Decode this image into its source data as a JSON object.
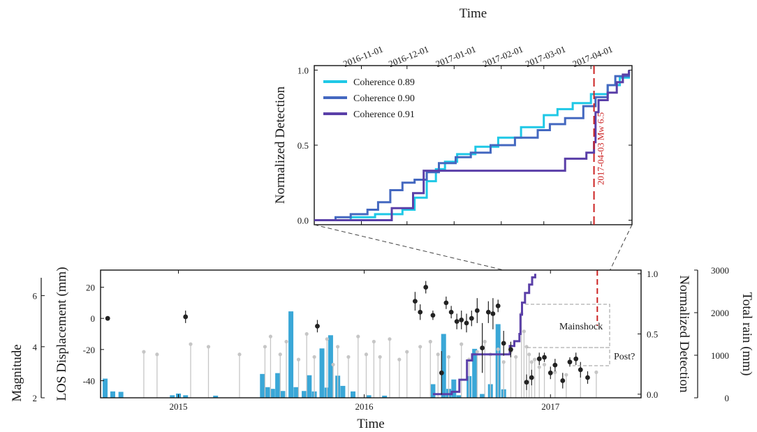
{
  "chart_data": [
    {
      "type": "line",
      "x_label_top": "Time",
      "ylabel": "Normalized Detection",
      "x_tick_labels": [
        "2016-11-01",
        "2016-12-01",
        "2017-01-01",
        "2017-02-01",
        "2017-03-01",
        "2017-04-01"
      ],
      "y_ticks": [
        "0.0",
        "0.5",
        "1.0"
      ],
      "xlim": [
        "2016-10-01",
        "2017-04-28"
      ],
      "ylim": [
        -0.03,
        1.03
      ],
      "event": {
        "date": "2017-04-03",
        "label": "2017-04-03 Mw 6.5",
        "color": "#cc2222"
      },
      "legend": "top-left",
      "series": [
        {
          "name": "Coherence 0.89",
          "color": "#1fc8e6",
          "step": true,
          "points": [
            [
              "2016-10-01",
              0.0
            ],
            [
              "2016-10-15",
              0.0
            ],
            [
              "2016-10-25",
              0.02
            ],
            [
              "2016-11-10",
              0.04
            ],
            [
              "2016-11-28",
              0.07
            ],
            [
              "2016-12-06",
              0.15
            ],
            [
              "2016-12-14",
              0.26
            ],
            [
              "2016-12-20",
              0.34
            ],
            [
              "2016-12-26",
              0.39
            ],
            [
              "2017-01-03",
              0.44
            ],
            [
              "2017-01-15",
              0.49
            ],
            [
              "2017-01-30",
              0.55
            ],
            [
              "2017-02-14",
              0.62
            ],
            [
              "2017-03-01",
              0.7
            ],
            [
              "2017-03-10",
              0.74
            ],
            [
              "2017-03-20",
              0.78
            ],
            [
              "2017-04-01",
              0.84
            ],
            [
              "2017-04-12",
              0.9
            ],
            [
              "2017-04-20",
              0.95
            ],
            [
              "2017-04-26",
              1.0
            ]
          ]
        },
        {
          "name": "Coherence 0.90",
          "color": "#4468c0",
          "step": true,
          "points": [
            [
              "2016-10-01",
              0.0
            ],
            [
              "2016-10-13",
              0.0
            ],
            [
              "2016-10-15",
              0.02
            ],
            [
              "2016-10-25",
              0.04
            ],
            [
              "2016-11-05",
              0.07
            ],
            [
              "2016-11-12",
              0.12
            ],
            [
              "2016-11-20",
              0.2
            ],
            [
              "2016-11-28",
              0.25
            ],
            [
              "2016-12-06",
              0.27
            ],
            [
              "2016-12-14",
              0.32
            ],
            [
              "2016-12-22",
              0.38
            ],
            [
              "2017-01-02",
              0.42
            ],
            [
              "2017-01-12",
              0.45
            ],
            [
              "2017-01-25",
              0.5
            ],
            [
              "2017-02-10",
              0.55
            ],
            [
              "2017-02-25",
              0.6
            ],
            [
              "2017-03-05",
              0.64
            ],
            [
              "2017-03-15",
              0.68
            ],
            [
              "2017-03-27",
              0.76
            ],
            [
              "2017-04-04",
              0.82
            ],
            [
              "2017-04-12",
              0.9
            ],
            [
              "2017-04-17",
              0.96
            ],
            [
              "2017-04-26",
              1.0
            ]
          ]
        },
        {
          "name": "Coherence 0.91",
          "color": "#5a3fa8",
          "step": true,
          "points": [
            [
              "2016-10-01",
              0.0
            ],
            [
              "2016-11-20",
              0.0
            ],
            [
              "2016-11-21",
              0.08
            ],
            [
              "2016-12-04",
              0.08
            ],
            [
              "2016-12-05",
              0.18
            ],
            [
              "2016-12-11",
              0.18
            ],
            [
              "2016-12-12",
              0.33
            ],
            [
              "2017-03-14",
              0.33
            ],
            [
              "2017-03-15",
              0.41
            ],
            [
              "2017-03-29",
              0.45
            ],
            [
              "2017-04-03",
              0.52
            ],
            [
              "2017-04-04",
              0.72
            ],
            [
              "2017-04-06",
              0.8
            ],
            [
              "2017-04-12",
              0.85
            ],
            [
              "2017-04-18",
              0.92
            ],
            [
              "2017-04-22",
              0.97
            ],
            [
              "2017-04-26",
              1.0
            ]
          ]
        }
      ]
    },
    {
      "type": "scatter",
      "xlabel": "Time",
      "x_tick_labels": [
        "2015",
        "2016",
        "2017"
      ],
      "xlim": [
        "2014-08-01",
        "2017-06-28"
      ],
      "axes": [
        {
          "name": "LOS Displacement (mm)",
          "side": "left",
          "ticks": [
            "20",
            "0",
            "-20",
            "-40"
          ],
          "ylim": [
            -51,
            31
          ]
        },
        {
          "name": "Magnitude",
          "side": "left-outer",
          "ticks": [
            "6",
            "4",
            "2"
          ],
          "ylim": [
            2,
            7
          ]
        },
        {
          "name": "Normalized Detection",
          "side": "right",
          "ticks": [
            "0.0",
            "0.5",
            "1.0"
          ],
          "ylim": [
            -0.03,
            1.03
          ]
        },
        {
          "name": "Total rain (mm)",
          "side": "right-outer",
          "ticks": [
            "3000",
            "2000",
            "1000",
            "0"
          ],
          "ylim": [
            0,
            3000
          ]
        }
      ],
      "event": {
        "date": "2017-04-03",
        "color": "#cc2222"
      },
      "annotations": [
        "Mainshock",
        "Post?"
      ],
      "series": [
        {
          "name": "LOS displacement",
          "kind": "errorbar",
          "color": "#222222",
          "points": [
            [
              "2014-08-15",
              0,
              0
            ],
            [
              "2015-01-15",
              1,
              4
            ],
            [
              "2015-10-01",
              -5,
              4
            ],
            [
              "2016-04-10",
              11,
              6
            ],
            [
              "2016-04-20",
              4,
              5
            ],
            [
              "2016-05-01",
              20,
              4
            ],
            [
              "2016-05-15",
              2,
              3
            ],
            [
              "2016-06-01",
              -35,
              14
            ],
            [
              "2016-06-10",
              10,
              4
            ],
            [
              "2016-06-20",
              4,
              4
            ],
            [
              "2016-07-01",
              -2,
              5
            ],
            [
              "2016-07-10",
              -1,
              6
            ],
            [
              "2016-07-20",
              -3,
              6
            ],
            [
              "2016-07-30",
              0,
              5
            ],
            [
              "2016-08-10",
              5,
              8
            ],
            [
              "2016-08-20",
              -19,
              16
            ],
            [
              "2016-09-01",
              4,
              7
            ],
            [
              "2016-09-10",
              3,
              10
            ],
            [
              "2016-09-20",
              8,
              4
            ],
            [
              "2016-10-01",
              -16,
              8
            ],
            [
              "2016-10-15",
              -20,
              5
            ],
            [
              "2016-11-15",
              -41,
              5
            ],
            [
              "2016-11-25",
              -38,
              5
            ],
            [
              "2016-12-10",
              -26,
              4
            ],
            [
              "2016-12-20",
              -25,
              3
            ],
            [
              "2017-01-01",
              -35,
              4
            ],
            [
              "2017-01-10",
              -30,
              4
            ],
            [
              "2017-01-25",
              -40,
              5
            ],
            [
              "2017-02-08",
              -28,
              3
            ],
            [
              "2017-02-20",
              -26,
              4
            ],
            [
              "2017-03-01",
              -33,
              5
            ],
            [
              "2017-03-15",
              -38,
              4
            ]
          ]
        },
        {
          "name": "Total rain",
          "kind": "bar",
          "color": "#3aa7d7",
          "points": [
            [
              "2014-08-10",
              450
            ],
            [
              "2014-08-25",
              150
            ],
            [
              "2014-09-10",
              140
            ],
            [
              "2014-12-20",
              60
            ],
            [
              "2015-01-01",
              100
            ],
            [
              "2015-01-15",
              60
            ],
            [
              "2015-03-15",
              50
            ],
            [
              "2015-06-15",
              560
            ],
            [
              "2015-06-25",
              250
            ],
            [
              "2015-07-05",
              210
            ],
            [
              "2015-07-15",
              580
            ],
            [
              "2015-07-25",
              160
            ],
            [
              "2015-08-10",
              2030
            ],
            [
              "2015-08-20",
              250
            ],
            [
              "2015-09-05",
              160
            ],
            [
              "2015-09-15",
              530
            ],
            [
              "2015-09-25",
              150
            ],
            [
              "2015-10-10",
              1160
            ],
            [
              "2015-10-20",
              240
            ],
            [
              "2015-10-27",
              1470
            ],
            [
              "2015-11-10",
              520
            ],
            [
              "2015-11-20",
              280
            ],
            [
              "2015-12-10",
              150
            ],
            [
              "2016-01-10",
              60
            ],
            [
              "2016-02-10",
              50
            ],
            [
              "2016-05-15",
              320
            ],
            [
              "2016-06-05",
              1500
            ],
            [
              "2016-06-15",
              210
            ],
            [
              "2016-06-25",
              430
            ],
            [
              "2016-07-05",
              60
            ],
            [
              "2016-07-25",
              510
            ],
            [
              "2016-08-05",
              1150
            ],
            [
              "2016-08-20",
              90
            ],
            [
              "2016-09-05",
              320
            ],
            [
              "2016-09-20",
              1730
            ],
            [
              "2016-10-01",
              200
            ]
          ]
        },
        {
          "name": "Earthquake magnitude",
          "kind": "stem",
          "color": "#c6c6c6",
          "points": [
            [
              "2014-10-25",
              3.8
            ],
            [
              "2014-11-20",
              3.7
            ],
            [
              "2015-01-25",
              4.1
            ],
            [
              "2015-03-01",
              4.0
            ],
            [
              "2015-05-01",
              3.7
            ],
            [
              "2015-06-20",
              4.0
            ],
            [
              "2015-07-01",
              4.4
            ],
            [
              "2015-07-20",
              3.7
            ],
            [
              "2015-08-01",
              4.2
            ],
            [
              "2015-08-25",
              3.5
            ],
            [
              "2015-09-10",
              4.5
            ],
            [
              "2015-09-25",
              3.6
            ],
            [
              "2015-10-20",
              4.3
            ],
            [
              "2015-11-01",
              3.3
            ],
            [
              "2015-11-10",
              4.0
            ],
            [
              "2015-12-01",
              3.6
            ],
            [
              "2015-12-20",
              4.4
            ],
            [
              "2016-01-05",
              3.7
            ],
            [
              "2016-01-20",
              4.2
            ],
            [
              "2016-02-01",
              3.6
            ],
            [
              "2016-02-20",
              4.3
            ],
            [
              "2016-03-10",
              3.5
            ],
            [
              "2016-03-25",
              3.8
            ],
            [
              "2016-04-20",
              4.0
            ],
            [
              "2016-05-10",
              4.2
            ],
            [
              "2016-05-25",
              3.7
            ],
            [
              "2016-06-15",
              3.6
            ],
            [
              "2016-07-10",
              4.1
            ],
            [
              "2016-07-25",
              3.5
            ],
            [
              "2016-08-10",
              3.8
            ],
            [
              "2016-08-25",
              4.2
            ],
            [
              "2016-09-05",
              3.7
            ],
            [
              "2016-09-20",
              3.9
            ],
            [
              "2016-10-01",
              3.4
            ],
            [
              "2016-10-15",
              3.8
            ],
            [
              "2016-10-25",
              3.6
            ],
            [
              "2016-11-05",
              5.3
            ],
            [
              "2016-11-10",
              4.6
            ],
            [
              "2016-11-15",
              4.0
            ],
            [
              "2016-11-20",
              3.7
            ],
            [
              "2016-11-25",
              3.4
            ],
            [
              "2016-12-01",
              3.5
            ],
            [
              "2016-12-10",
              3.2
            ],
            [
              "2016-12-20",
              3.3
            ],
            [
              "2017-01-10",
              3.0
            ],
            [
              "2017-02-01",
              2.9
            ],
            [
              "2017-03-01",
              3.1
            ],
            [
              "2017-04-01",
              3.0
            ]
          ]
        },
        {
          "name": "Coherence 0.91",
          "kind": "step",
          "color": "#5a3fa8",
          "points": [
            [
              "2016-05-15",
              0.0
            ],
            [
              "2016-06-20",
              0.0
            ],
            [
              "2016-06-21",
              0.02
            ],
            [
              "2016-07-05",
              0.02
            ],
            [
              "2016-07-06",
              0.12
            ],
            [
              "2016-07-20",
              0.12
            ],
            [
              "2016-07-21",
              0.28
            ],
            [
              "2016-07-30",
              0.28
            ],
            [
              "2016-07-31",
              0.33
            ],
            [
              "2016-10-12",
              0.33
            ],
            [
              "2016-10-13",
              0.4
            ],
            [
              "2016-10-22",
              0.44
            ],
            [
              "2016-11-01",
              0.5
            ],
            [
              "2016-11-03",
              0.66
            ],
            [
              "2016-11-06",
              0.76
            ],
            [
              "2016-11-12",
              0.84
            ],
            [
              "2016-11-20",
              0.91
            ],
            [
              "2016-11-26",
              0.97
            ],
            [
              "2016-12-02",
              1.0
            ]
          ]
        }
      ]
    }
  ]
}
